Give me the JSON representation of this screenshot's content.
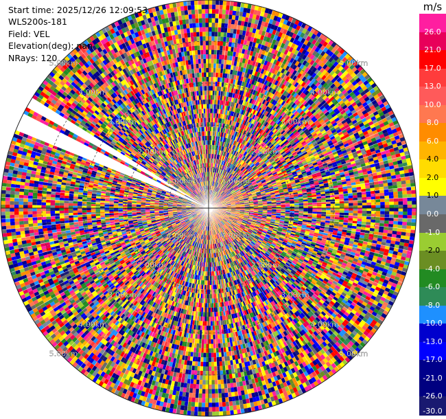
{
  "info": {
    "start_time": "Start time: 2025/12/26 12:09:53",
    "instrument": "WLS200s-181",
    "field": "Field: VEL",
    "elevation": "Elevation(deg): nan",
    "nrays": "NRays: 120"
  },
  "colorbar": {
    "unit": "m/s",
    "labels": [
      "26.0",
      "21.0",
      "17.0",
      "13.0",
      "10.0",
      "8.0",
      "6.0",
      "4.0",
      "2.0",
      "1.0",
      "0.0",
      "-1.0",
      "-2.0",
      "-4.0",
      "-6.0",
      "-8.0",
      "-10.0",
      "-13.0",
      "-17.0",
      "-21.0",
      "-26.0",
      "-30.0"
    ],
    "colors": [
      "#ff1ea0",
      "#e8005a",
      "#ff0000",
      "#ff3c3c",
      "#ff5a5a",
      "#ff7850",
      "#ff8c00",
      "#ffb400",
      "#ffdc00",
      "#ffff00",
      "#778899",
      "#696969",
      "#9acd32",
      "#6b8e23",
      "#228b22",
      "#2e8b57",
      "#1e90ff",
      "#0000cd",
      "#0000ff",
      "#00008b",
      "#000080",
      "#191970"
    ]
  },
  "chart_data": {
    "type": "heatmap",
    "subtype": "polar-ppi",
    "field": "VEL",
    "unit": "m/s",
    "rays": 120,
    "missing_sectors_deg": [
      [
        292,
        297
      ],
      [
        299,
        302
      ]
    ],
    "range_ring_labels": [
      "1.00km",
      "2.00km",
      "3.00km",
      "4.00km",
      "5.00km"
    ],
    "color_levels": [
      -30,
      -26,
      -21,
      -17,
      -13,
      -10,
      -8,
      -6,
      -4,
      -2,
      -1,
      0,
      1,
      2,
      4,
      6,
      8,
      10,
      13,
      17,
      21,
      26
    ]
  }
}
